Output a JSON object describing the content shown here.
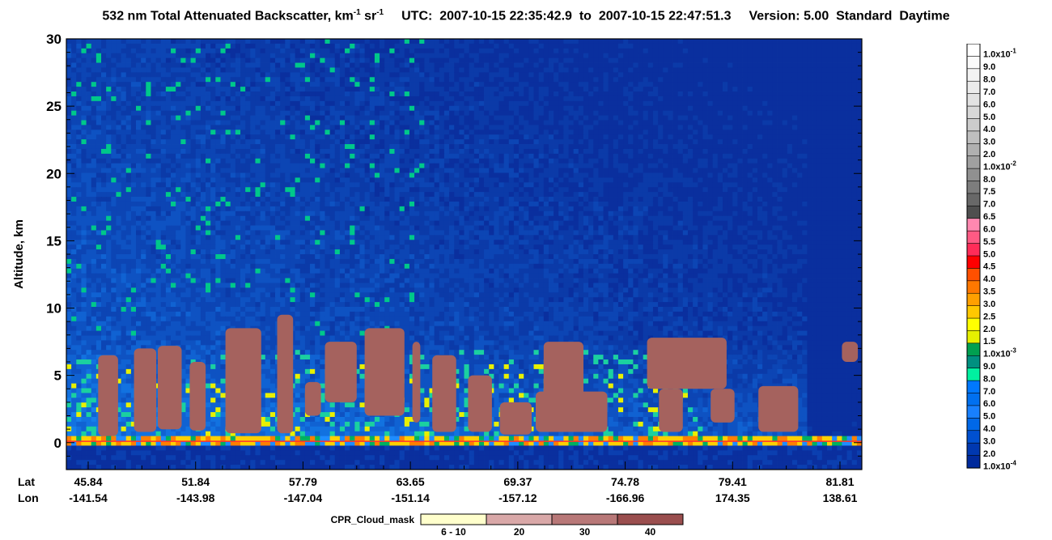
{
  "title": {
    "product": "532 nm Total Attenuated Backscatter, km",
    "unit_exp_1": "-1",
    "unit_sr": " sr",
    "unit_exp_2": "-1",
    "utc_label": "UTC:",
    "utc_start": "2007-10-15 22:35:42.9",
    "to_label": "to",
    "utc_end": "2007-10-15 22:47:51.3",
    "version": "Version: 5.00",
    "mode": "Standard",
    "time_of_day": "Daytime"
  },
  "chart_data": {
    "type": "heatmap",
    "ylabel": "Altitude, km",
    "ylim": [
      -2,
      30
    ],
    "yticks": [
      "0",
      "5",
      "10",
      "15",
      "20",
      "25",
      "30"
    ],
    "x_row_labels": [
      "Lat",
      "Lon"
    ],
    "x_ticks": [
      {
        "lat": "45.84",
        "lon": "-141.54"
      },
      {
        "lat": "51.84",
        "lon": "-143.98"
      },
      {
        "lat": "57.79",
        "lon": "-147.04"
      },
      {
        "lat": "63.65",
        "lon": "-151.14"
      },
      {
        "lat": "69.37",
        "lon": "-157.12"
      },
      {
        "lat": "74.78",
        "lon": "-166.96"
      },
      {
        "lat": "79.41",
        "lon": "174.35"
      },
      {
        "lat": "81.81",
        "lon": "138.61"
      }
    ],
    "colorbar": {
      "labels": [
        "1.0x10-1",
        "9.0",
        "8.0",
        "7.0",
        "6.0",
        "5.0",
        "4.0",
        "3.0",
        "2.0",
        "1.0x10-2",
        "8.0",
        "7.5",
        "7.0",
        "6.5",
        "6.0",
        "5.5",
        "5.0",
        "4.5",
        "4.0",
        "3.5",
        "3.0",
        "2.5",
        "2.0",
        "1.5",
        "1.0x10-3",
        "9.0",
        "8.0",
        "7.0",
        "6.0",
        "5.0",
        "4.0",
        "3.0",
        "2.0",
        "1.0x10-4"
      ],
      "colors": [
        "#ffffff",
        "#fafafa",
        "#f3f3f3",
        "#ebebeb",
        "#e2e2e2",
        "#d8d8d8",
        "#cccccc",
        "#bfbfbf",
        "#b0b0b0",
        "#a0a0a0",
        "#909090",
        "#7d7d7d",
        "#686868",
        "#4f4f4f",
        "#ff88b0",
        "#ff5a84",
        "#ff2c58",
        "#ff0000",
        "#ff5000",
        "#ff7800",
        "#ffa000",
        "#ffc800",
        "#ffff00",
        "#e6f000",
        "#00a050",
        "#009080",
        "#00f0a0",
        "#0078ff",
        "#0070f0",
        "#1880ff",
        "#0068e8",
        "#0050d0",
        "#0038b0",
        "#002a9c"
      ]
    },
    "cpr_cloud_mask": {
      "label": "CPR_Cloud_mask",
      "categories": [
        "6 - 10",
        "20",
        "30",
        "40"
      ],
      "colors": [
        "#ffffcc",
        "#d9a8a8",
        "#b87878",
        "#9a4e4e"
      ]
    },
    "cloud_mask_regions_km": [
      {
        "x": 0.04,
        "w": 0.025,
        "bot": 0.5,
        "top": 6.5
      },
      {
        "x": 0.085,
        "w": 0.028,
        "bot": 0.8,
        "top": 7.0
      },
      {
        "x": 0.115,
        "w": 0.03,
        "bot": 1.0,
        "top": 7.2
      },
      {
        "x": 0.155,
        "w": 0.02,
        "bot": 0.9,
        "top": 6.0
      },
      {
        "x": 0.2,
        "w": 0.045,
        "bot": 0.7,
        "top": 8.5
      },
      {
        "x": 0.265,
        "w": 0.02,
        "bot": 0.7,
        "top": 9.5
      },
      {
        "x": 0.3,
        "w": 0.02,
        "bot": 2.0,
        "top": 4.5
      },
      {
        "x": 0.325,
        "w": 0.04,
        "bot": 3.0,
        "top": 7.5
      },
      {
        "x": 0.375,
        "w": 0.05,
        "bot": 2.0,
        "top": 8.5
      },
      {
        "x": 0.435,
        "w": 0.01,
        "bot": 1.5,
        "top": 7.5
      },
      {
        "x": 0.46,
        "w": 0.03,
        "bot": 0.8,
        "top": 6.5
      },
      {
        "x": 0.505,
        "w": 0.03,
        "bot": 0.8,
        "top": 5.0
      },
      {
        "x": 0.545,
        "w": 0.04,
        "bot": 0.6,
        "top": 3.0
      },
      {
        "x": 0.6,
        "w": 0.05,
        "bot": 2.0,
        "top": 7.5
      },
      {
        "x": 0.59,
        "w": 0.09,
        "bot": 0.8,
        "top": 3.8
      },
      {
        "x": 0.73,
        "w": 0.1,
        "bot": 4.0,
        "top": 7.8
      },
      {
        "x": 0.745,
        "w": 0.03,
        "bot": 0.8,
        "top": 4.0
      },
      {
        "x": 0.81,
        "w": 0.03,
        "bot": 1.5,
        "top": 4.0
      },
      {
        "x": 0.87,
        "w": 0.05,
        "bot": 0.8,
        "top": 4.2
      },
      {
        "x": 0.975,
        "w": 0.02,
        "bot": 6.0,
        "top": 7.5
      }
    ]
  }
}
